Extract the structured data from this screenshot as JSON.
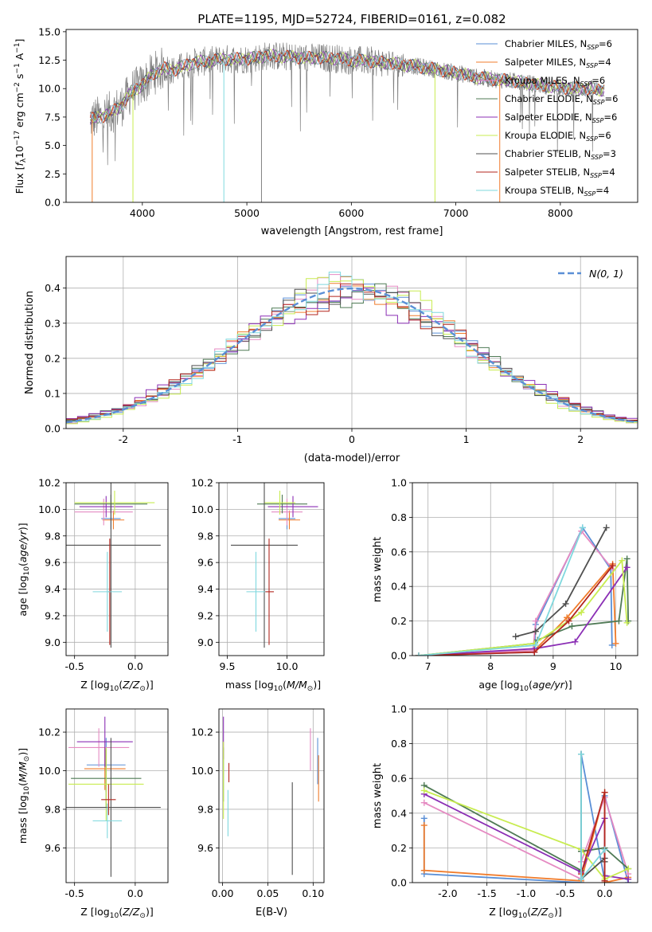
{
  "figure_title": "PLATE=1195, MJD=52724, FIBERID=0161, z=0.082",
  "colors": {
    "c0": "#5a8fd6",
    "c1": "#f07c2c",
    "c2": "#e58ac2",
    "c3": "#4f7a55",
    "c4": "#8b2fb5",
    "c5": "#c8ec50",
    "c6": "#505050",
    "c7": "#b3261e",
    "c8": "#7fd8de",
    "spec": "#808080",
    "spec_cyan": "#7ed6dc",
    "gauss": "#5a8fd6"
  },
  "legend_models": [
    {
      "label": "Chabrier MILES, N_SSP=6",
      "text": "Chabrier MILES, N",
      "sub": "SSP",
      "tail": "=6",
      "color": "#5a8fd6"
    },
    {
      "label": "Salpeter MILES, N_SSP=4",
      "text": "Salpeter MILES, N",
      "sub": "SSP",
      "tail": "=4",
      "color": "#f07c2c"
    },
    {
      "label": "Kroupa MILES, N_SSP=6",
      "text": "Kroupa MILES, N",
      "sub": "SSP",
      "tail": "=6",
      "color": "#e58ac2"
    },
    {
      "label": "Chabrier ELODIE, N_SSP=6",
      "text": "Chabrier ELODIE, N",
      "sub": "SSP",
      "tail": "=6",
      "color": "#4f7a55"
    },
    {
      "label": "Salpeter ELODIE, N_SSP=6",
      "text": "Salpeter ELODIE, N",
      "sub": "SSP",
      "tail": "=6",
      "color": "#8b2fb5"
    },
    {
      "label": "Kroupa ELODIE, N_SSP=6",
      "text": "Kroupa ELODIE, N",
      "sub": "SSP",
      "tail": "=6",
      "color": "#c8ec50"
    },
    {
      "label": "Chabrier STELIB, N_SSP=3",
      "text": "Chabrier STELIB, N",
      "sub": "SSP",
      "tail": "=3",
      "color": "#505050"
    },
    {
      "label": "Salpeter STELIB, N_SSP=4",
      "text": "Salpeter STELIB, N",
      "sub": "SSP",
      "tail": "=4",
      "color": "#b3261e"
    },
    {
      "label": "Kroupa STELIB, N_SSP=4",
      "text": "Kroupa STELIB, N",
      "sub": "SSP",
      "tail": "=4",
      "color": "#7fd8de"
    }
  ],
  "chart_data": [
    {
      "id": "spectrum",
      "type": "line",
      "xlabel": "wavelength [Angstrom, rest frame]",
      "ylabel": "Flux [f_λ 10^-17 erg cm^-2 s^-1 A^-1]",
      "xlim": [
        3270,
        8740
      ],
      "ylim": [
        0,
        15.2
      ],
      "xticks": [
        4000,
        5000,
        6000,
        7000,
        8000
      ],
      "yticks": [
        0.0,
        2.5,
        5.0,
        7.5,
        10.0,
        12.5,
        15.0
      ],
      "grid": false,
      "legend": "upper-right",
      "continuum": [
        [
          3500,
          7.3
        ],
        [
          3600,
          7.5
        ],
        [
          3700,
          7.9
        ],
        [
          3800,
          8.5
        ],
        [
          3900,
          9.8
        ],
        [
          4000,
          10.3
        ],
        [
          4100,
          11.3
        ],
        [
          4200,
          11.8
        ],
        [
          4300,
          11.6
        ],
        [
          4400,
          12.0
        ],
        [
          4500,
          12.3
        ],
        [
          4600,
          12.4
        ],
        [
          4700,
          12.5
        ],
        [
          4800,
          12.6
        ],
        [
          5000,
          12.6
        ],
        [
          5200,
          12.9
        ],
        [
          5400,
          12.8
        ],
        [
          5600,
          12.7
        ],
        [
          5800,
          12.7
        ],
        [
          6000,
          12.5
        ],
        [
          6200,
          12.4
        ],
        [
          6400,
          12.2
        ],
        [
          6600,
          12.0
        ],
        [
          6800,
          11.7
        ],
        [
          7000,
          11.4
        ],
        [
          7200,
          11.0
        ],
        [
          7400,
          10.8
        ],
        [
          7600,
          10.6
        ],
        [
          7800,
          10.3
        ],
        [
          8000,
          10.1
        ],
        [
          8200,
          10.0
        ],
        [
          8400,
          9.9
        ]
      ],
      "data_noise": 1.3,
      "dropouts": [
        {
          "x": 3910,
          "color": "#c8ec50"
        },
        {
          "x": 4780,
          "color": "#7fd8de"
        },
        {
          "x": 5140,
          "color": "#808080"
        },
        {
          "x": 6800,
          "color": "#c8ec50"
        },
        {
          "x": 7420,
          "color": "#f07c2c"
        },
        {
          "x": 3520,
          "color": "#f07c2c"
        }
      ]
    },
    {
      "id": "residuals",
      "type": "histogram",
      "xlabel": "(data-model)/error",
      "ylabel": "Normed distribution",
      "xlim": [
        -2.5,
        2.5
      ],
      "ylim": [
        0,
        0.49
      ],
      "xticks": [
        -2,
        -1,
        0,
        1,
        2
      ],
      "yticks": [
        0.0,
        0.1,
        0.2,
        0.3,
        0.4
      ],
      "grid": true,
      "legend": "upper-right",
      "reference_label": "N(0, 1)",
      "bin_width": 0.1,
      "series_shapes": [
        1.0,
        1.03,
        0.97,
        1.05,
        1.08,
        0.95,
        1.02,
        1.04,
        0.99
      ]
    },
    {
      "id": "age_vs_Z",
      "type": "errorbar",
      "xlabel": "Z [log10(Z/Z⊙)]",
      "ylabel": "age [log10(age/yr)]",
      "xlim": [
        -0.57,
        0.27
      ],
      "ylim": [
        8.9,
        10.2
      ],
      "xticks": [
        -0.5,
        0.0
      ],
      "yticks": [
        9.0,
        9.2,
        9.4,
        9.6,
        9.8,
        10.0,
        10.2
      ],
      "grid": true,
      "points": [
        {
          "series": "Chabrier MILES",
          "x": -0.2,
          "y": 9.93,
          "xerr": 0.08,
          "yerr": 0.08
        },
        {
          "series": "Salpeter MILES",
          "x": -0.18,
          "y": 9.92,
          "xerr": 0.09,
          "yerr": 0.07
        },
        {
          "series": "Kroupa MILES",
          "x": -0.26,
          "y": 9.98,
          "xerr": 0.24,
          "yerr": 0.1
        },
        {
          "series": "Chabrier ELODIE",
          "x": -0.2,
          "y": 10.04,
          "xerr": 0.3,
          "yerr": 0.07
        },
        {
          "series": "Salpeter ELODIE",
          "x": -0.24,
          "y": 10.02,
          "xerr": 0.22,
          "yerr": 0.08
        },
        {
          "series": "Kroupa ELODIE",
          "x": -0.17,
          "y": 10.05,
          "xerr": 0.33,
          "yerr": 0.09
        },
        {
          "series": "Chabrier STELIB",
          "x": -0.2,
          "y": 9.73,
          "xerr": 0.41,
          "yerr": 0.77
        },
        {
          "series": "Salpeter STELIB",
          "x": -0.21,
          "y": 9.38,
          "xerr": 0.01,
          "yerr": 0.4
        },
        {
          "series": "Kroupa STELIB",
          "x": -0.23,
          "y": 9.38,
          "xerr": 0.12,
          "yerr": 0.3
        }
      ]
    },
    {
      "id": "age_vs_mass",
      "type": "errorbar",
      "xlabel": "mass [log10(M/M⊙)]",
      "ylabel": "",
      "xlim": [
        9.43,
        10.31
      ],
      "ylim": [
        8.9,
        10.2
      ],
      "xticks": [
        9.5,
        10.0
      ],
      "yticks": [
        9.0,
        9.2,
        9.4,
        9.6,
        9.8,
        10.0,
        10.2
      ],
      "grid": true,
      "points": [
        {
          "series": "Chabrier MILES",
          "x": 10.0,
          "y": 9.93,
          "xerr": 0.07,
          "yerr": 0.08
        },
        {
          "series": "Salpeter MILES",
          "x": 10.02,
          "y": 9.92,
          "xerr": 0.09,
          "yerr": 0.07
        },
        {
          "series": "Kroupa MILES",
          "x": 10.0,
          "y": 9.98,
          "xerr": 0.13,
          "yerr": 0.1
        },
        {
          "series": "Chabrier ELODIE",
          "x": 9.96,
          "y": 10.04,
          "xerr": 0.21,
          "yerr": 0.07
        },
        {
          "series": "Salpeter ELODIE",
          "x": 10.05,
          "y": 10.02,
          "xerr": 0.21,
          "yerr": 0.08
        },
        {
          "series": "Kroupa ELODIE",
          "x": 9.94,
          "y": 10.05,
          "xerr": 0.13,
          "yerr": 0.09
        },
        {
          "series": "Chabrier STELIB",
          "x": 9.81,
          "y": 9.73,
          "xerr": 0.28,
          "yerr": 0.77
        },
        {
          "series": "Salpeter STELIB",
          "x": 9.85,
          "y": 9.38,
          "xerr": 0.04,
          "yerr": 0.4
        },
        {
          "series": "Kroupa STELIB",
          "x": 9.74,
          "y": 9.38,
          "xerr": 0.08,
          "yerr": 0.3
        }
      ]
    },
    {
      "id": "mass_weight_vs_age",
      "type": "line",
      "xlabel": "age [log10(age/yr)]",
      "ylabel": "mass weight",
      "xlim": [
        6.75,
        10.35
      ],
      "ylim": [
        0,
        1.0
      ],
      "xticks": [
        7,
        8,
        9,
        10
      ],
      "yticks": [
        0.0,
        0.2,
        0.4,
        0.6,
        0.8,
        1.0
      ],
      "grid": true,
      "series": [
        {
          "name": "Chabrier MILES",
          "x": [
            6.85,
            8.7,
            8.72,
            9.47,
            9.92,
            9.94
          ],
          "y": [
            0.0,
            0.02,
            0.18,
            0.74,
            0.5,
            0.06
          ]
        },
        {
          "name": "Salpeter MILES",
          "x": [
            6.85,
            8.7,
            9.22,
            9.95,
            10.0
          ],
          "y": [
            0.0,
            0.03,
            0.22,
            0.53,
            0.07
          ]
        },
        {
          "name": "Kroupa MILES",
          "x": [
            6.85,
            8.68,
            8.72,
            9.45,
            9.95
          ],
          "y": [
            0.0,
            0.03,
            0.2,
            0.72,
            0.5
          ]
        },
        {
          "name": "Chabrier ELODIE",
          "x": [
            6.85,
            8.7,
            8.75,
            9.3,
            10.05,
            10.18,
            10.2
          ],
          "y": [
            0.0,
            0.07,
            0.09,
            0.17,
            0.2,
            0.56,
            0.2
          ]
        },
        {
          "name": "Salpeter ELODIE",
          "x": [
            6.85,
            8.7,
            9.35,
            10.18
          ],
          "y": [
            0.0,
            0.04,
            0.08,
            0.51
          ]
        },
        {
          "name": "Kroupa ELODIE",
          "x": [
            6.85,
            8.7,
            9.45,
            10.1,
            10.18
          ],
          "y": [
            0.0,
            0.07,
            0.25,
            0.55,
            0.19
          ]
        },
        {
          "name": "Chabrier STELIB",
          "x": [
            8.4,
            8.72,
            9.2,
            9.85
          ],
          "y": [
            0.11,
            0.14,
            0.3,
            0.74
          ]
        },
        {
          "name": "Salpeter STELIB",
          "x": [
            6.85,
            8.7,
            9.25,
            9.95
          ],
          "y": [
            0.0,
            0.02,
            0.2,
            0.52
          ]
        },
        {
          "name": "Kroupa STELIB",
          "x": [
            6.85,
            8.72,
            9.47
          ],
          "y": [
            0.0,
            0.06,
            0.74
          ]
        }
      ]
    },
    {
      "id": "mass_vs_Z",
      "type": "errorbar",
      "xlabel": "Z [log10(Z/Z⊙)]",
      "ylabel": "mass [log10(M/M⊙)]",
      "xlim": [
        -0.57,
        0.27
      ],
      "ylim": [
        9.42,
        10.32
      ],
      "xticks": [
        -0.5,
        0.0
      ],
      "yticks": [
        9.6,
        9.8,
        10.0,
        10.2
      ],
      "grid": true,
      "points": [
        {
          "series": "Chabrier MILES",
          "x": -0.24,
          "y": 10.03,
          "xerr": 0.16,
          "yerr": 0.14
        },
        {
          "series": "Salpeter MILES",
          "x": -0.25,
          "y": 10.01,
          "xerr": 0.17,
          "yerr": 0.11
        },
        {
          "series": "Kroupa MILES",
          "x": -0.3,
          "y": 10.12,
          "xerr": 0.25,
          "yerr": 0.1
        },
        {
          "series": "Chabrier ELODIE",
          "x": -0.24,
          "y": 9.96,
          "xerr": 0.29,
          "yerr": 0.15
        },
        {
          "series": "Salpeter ELODIE",
          "x": -0.25,
          "y": 10.15,
          "xerr": 0.23,
          "yerr": 0.13
        },
        {
          "series": "Kroupa ELODIE",
          "x": -0.24,
          "y": 9.93,
          "xerr": 0.31,
          "yerr": 0.19
        },
        {
          "series": "Chabrier STELIB",
          "x": -0.2,
          "y": 9.81,
          "xerr": 0.41,
          "yerr": 0.36
        },
        {
          "series": "Salpeter STELIB",
          "x": -0.22,
          "y": 9.85,
          "xerr": 0.06,
          "yerr": 0.08
        },
        {
          "series": "Kroupa STELIB",
          "x": -0.23,
          "y": 9.74,
          "xerr": 0.12,
          "yerr": 0.09
        }
      ]
    },
    {
      "id": "mass_vs_ebv",
      "type": "errorbar",
      "xlabel": "E(B-V)",
      "ylabel": "",
      "xlim": [
        -0.004,
        0.112
      ],
      "ylim": [
        9.42,
        10.32
      ],
      "xticks": [
        0.0,
        0.05,
        0.1
      ],
      "yticks": [
        9.6,
        9.8,
        10.0,
        10.2
      ],
      "grid": true,
      "points": [
        {
          "series": "Chabrier MILES",
          "x": 0.105,
          "y": 10.05,
          "xerr": 0.0,
          "yerr": 0.12
        },
        {
          "series": "Salpeter MILES",
          "x": 0.106,
          "y": 9.96,
          "xerr": 0.0,
          "yerr": 0.12
        },
        {
          "series": "Kroupa MILES",
          "x": 0.097,
          "y": 10.11,
          "xerr": 0.0,
          "yerr": 0.11
        },
        {
          "series": "Chabrier ELODIE",
          "x": 0.001,
          "y": 9.98,
          "xerr": 0.0,
          "yerr": 0.14
        },
        {
          "series": "Salpeter ELODIE",
          "x": 0.001,
          "y": 10.17,
          "xerr": 0.0,
          "yerr": 0.11
        },
        {
          "series": "Kroupa ELODIE",
          "x": 0.001,
          "y": 9.95,
          "xerr": 0.0,
          "yerr": 0.2
        },
        {
          "series": "Chabrier STELIB",
          "x": 0.077,
          "y": 9.7,
          "xerr": 0.0,
          "yerr": 0.24
        },
        {
          "series": "Salpeter STELIB",
          "x": 0.007,
          "y": 9.99,
          "xerr": 0.0,
          "yerr": 0.05
        },
        {
          "series": "Kroupa STELIB",
          "x": 0.006,
          "y": 9.78,
          "xerr": 0.0,
          "yerr": 0.12
        }
      ]
    },
    {
      "id": "mass_weight_vs_Z",
      "type": "line",
      "xlabel": "Z [log10(Z/Z⊙)]",
      "ylabel": "mass weight",
      "xlim": [
        -2.45,
        0.42
      ],
      "ylim": [
        0,
        1.0
      ],
      "xticks": [
        -2.0,
        -1.5,
        -1.0,
        -0.5,
        0.0
      ],
      "yticks": [
        0.0,
        0.2,
        0.4,
        0.6,
        0.8,
        1.0
      ],
      "grid": true,
      "series": [
        {
          "name": "Chabrier MILES",
          "x": [
            -2.3,
            -2.3,
            -0.3,
            -0.3,
            0.0,
            0.0,
            0.3
          ],
          "y": [
            0.37,
            0.05,
            0.0,
            0.74,
            0.01,
            0.5,
            0.0
          ]
        },
        {
          "name": "Salpeter MILES",
          "x": [
            -2.3,
            -2.3,
            -0.3,
            0.0,
            0.0,
            0.3
          ],
          "y": [
            0.33,
            0.07,
            0.01,
            0.52,
            0.0,
            0.03
          ]
        },
        {
          "name": "Kroupa MILES",
          "x": [
            -2.3,
            -0.3,
            -0.3,
            0.0,
            0.3
          ],
          "y": [
            0.46,
            0.02,
            0.12,
            0.49,
            0.05
          ]
        },
        {
          "name": "Chabrier ELODIE",
          "x": [
            -2.3,
            -0.3,
            -0.3,
            0.0,
            0.3
          ],
          "y": [
            0.56,
            0.07,
            0.18,
            0.2,
            0.08
          ]
        },
        {
          "name": "Salpeter ELODIE",
          "x": [
            -2.3,
            -0.3,
            0.0,
            0.0,
            0.3
          ],
          "y": [
            0.51,
            0.06,
            0.37,
            0.04,
            0.02
          ]
        },
        {
          "name": "Kroupa ELODIE",
          "x": [
            -2.3,
            -0.3,
            0.0,
            0.3
          ],
          "y": [
            0.53,
            0.19,
            0.02,
            0.08
          ]
        },
        {
          "name": "Chabrier STELIB",
          "x": [
            -0.3,
            -0.3,
            0.0,
            0.0
          ],
          "y": [
            0.74,
            0.02,
            0.14,
            0.12
          ]
        },
        {
          "name": "Salpeter STELIB",
          "x": [
            -0.3,
            0.0,
            0.0
          ],
          "y": [
            0.05,
            0.52,
            0.01
          ]
        },
        {
          "name": "Kroupa STELIB",
          "x": [
            -0.3,
            -0.3,
            0.0
          ],
          "y": [
            0.74,
            0.02,
            0.19
          ]
        }
      ]
    }
  ]
}
